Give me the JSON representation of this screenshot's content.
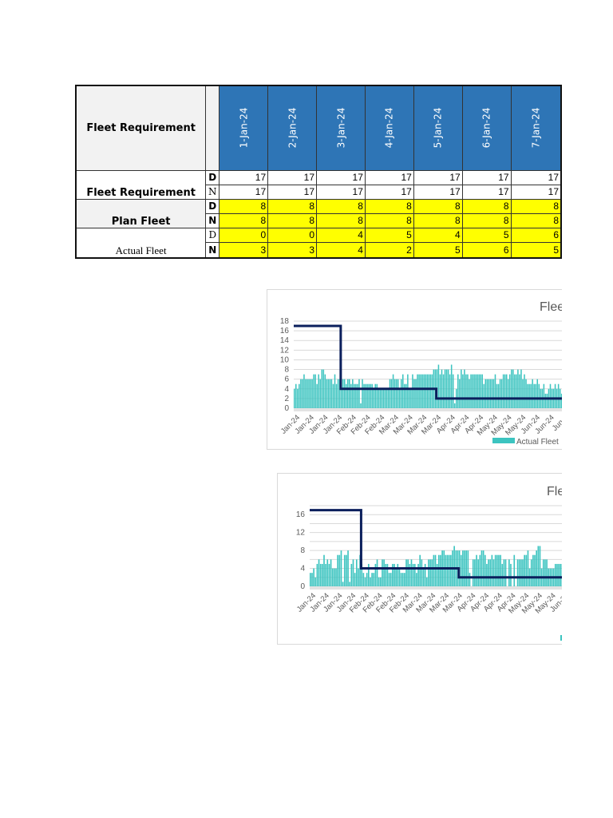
{
  "table": {
    "header_label": "Fleet Requirement",
    "dates": [
      "1-Jan-24",
      "2-Jan-24",
      "3-Jan-24",
      "4-Jan-24",
      "5-Jan-24",
      "6-Jan-24",
      "7-Jan-24"
    ],
    "rows": [
      {
        "group": "Fleet Requirement",
        "shift": "D",
        "values": [
          "17",
          "17",
          "17",
          "17",
          "17",
          "17",
          "17"
        ]
      },
      {
        "group": "",
        "shift": "N",
        "values": [
          "17",
          "17",
          "17",
          "17",
          "17",
          "17",
          "17"
        ]
      },
      {
        "group": "Plan Fleet",
        "shift": "D",
        "values": [
          "8",
          "8",
          "8",
          "8",
          "8",
          "8",
          "8"
        ]
      },
      {
        "group": "",
        "shift": "N",
        "values": [
          "8",
          "8",
          "8",
          "8",
          "8",
          "8",
          "8"
        ]
      },
      {
        "group": "Actual Fleet",
        "shift": "D",
        "values": [
          "0",
          "0",
          "4",
          "5",
          "4",
          "5",
          "6"
        ]
      },
      {
        "group": "",
        "shift": "N",
        "values": [
          "3",
          "3",
          "4",
          "2",
          "5",
          "6",
          "5"
        ]
      }
    ]
  },
  "chart_data": [
    {
      "type": "bar",
      "title": "Flee",
      "legend": [
        "Actual Fleet"
      ],
      "legend_placement": "bottom-right",
      "ylim": [
        0,
        18
      ],
      "yticks": [
        0,
        2,
        4,
        6,
        8,
        10,
        12,
        14,
        16,
        18
      ],
      "grid": true,
      "colors": {
        "bars": "#3cc4c0",
        "line": "#0b1f5c"
      },
      "xtick_labels": [
        "Jan-24",
        "Jan-24",
        "Jan-24",
        "Jan-24",
        "Feb-24",
        "Feb-24",
        "Feb-24",
        "Mar-24",
        "Mar-24",
        "Mar-24",
        "Mar-24",
        "Apr-24",
        "Apr-24",
        "Apr-24",
        "May-24",
        "May-24",
        "May-24",
        "Jun-24",
        "Jun-24",
        "Jun-2"
      ],
      "series": [
        {
          "name": "Actual Fleet",
          "type": "bar",
          "values": [
            4,
            5,
            4,
            5,
            6,
            6,
            7,
            6,
            6,
            6,
            6,
            6,
            7,
            7,
            5,
            7,
            6,
            8,
            8,
            7,
            6,
            6,
            6,
            6,
            5,
            7,
            5,
            6,
            6,
            6,
            6,
            6,
            5,
            6,
            6,
            5,
            6,
            5,
            5,
            5,
            6,
            1,
            6,
            5,
            5,
            5,
            5,
            5,
            5,
            4,
            5,
            5,
            4,
            4,
            4,
            4,
            4,
            4,
            4,
            6,
            6,
            7,
            6,
            6,
            6,
            4,
            6,
            7,
            5,
            5,
            7,
            4,
            4,
            7,
            6,
            6,
            7,
            7,
            7,
            7,
            7,
            7,
            7,
            7,
            7,
            7,
            8,
            8,
            8,
            9,
            7,
            8,
            7,
            8,
            8,
            8,
            7,
            9,
            7,
            1,
            4,
            7,
            6,
            8,
            7,
            8,
            7,
            7,
            6,
            7,
            7,
            7,
            7,
            7,
            7,
            7,
            7,
            5,
            6,
            6,
            6,
            6,
            6,
            6,
            7,
            5,
            5,
            6,
            6,
            7,
            7,
            7,
            6,
            7,
            8,
            8,
            7,
            7,
            8,
            7,
            8,
            6,
            7,
            6,
            5,
            5,
            5,
            6,
            5,
            5,
            6,
            5,
            4,
            4,
            5,
            3,
            3,
            4,
            5,
            4,
            4,
            5,
            4,
            5,
            4,
            3,
            3
          ]
        },
        {
          "type": "line",
          "steps": [
            {
              "start_index": 0,
              "value": 17
            },
            {
              "start_index": 29,
              "value": 4
            },
            {
              "start_index": 88,
              "value": 2
            }
          ]
        }
      ]
    },
    {
      "type": "bar",
      "title": "Fle",
      "legend": [
        ""
      ],
      "legend_placement": "bottom-right",
      "ylim": [
        0,
        18
      ],
      "yticks": [
        0,
        4,
        8,
        12,
        16
      ],
      "grid": true,
      "colors": {
        "bars": "#3cc4c0",
        "line": "#0b1f5c"
      },
      "xtick_labels": [
        "Jan-24",
        "Jan-24",
        "Jan-24",
        "Jan-24",
        "Feb-24",
        "Feb-24",
        "Feb-24",
        "Feb-24",
        "Mar-24",
        "Mar-24",
        "Mar-24",
        "Mar-24",
        "Apr-24",
        "Apr-24",
        "Apr-24",
        "Apr-24",
        "May-24",
        "May-24",
        "May-24",
        "Jun-24",
        "Jun"
      ],
      "series": [
        {
          "type": "bar",
          "values": [
            3,
            3,
            4,
            2,
            5,
            6,
            5,
            5,
            7,
            5,
            6,
            5,
            6,
            4,
            4,
            4,
            7,
            7,
            8,
            1,
            7,
            7,
            8,
            1,
            5,
            6,
            3,
            6,
            4,
            7,
            5,
            3,
            2,
            3,
            5,
            2,
            3,
            3,
            5,
            6,
            2,
            2,
            6,
            6,
            5,
            5,
            3,
            3,
            5,
            5,
            4,
            5,
            4,
            3,
            3,
            3,
            6,
            6,
            5,
            6,
            5,
            5,
            3,
            5,
            7,
            6,
            4,
            5,
            2,
            6,
            6,
            6,
            7,
            7,
            5,
            7,
            7,
            8,
            8,
            7,
            7,
            7,
            7,
            8,
            9,
            8,
            8,
            8,
            7,
            8,
            8,
            8,
            8,
            3,
            0,
            6,
            6,
            7,
            6,
            7,
            8,
            8,
            7,
            5,
            6,
            6,
            7,
            6,
            7,
            7,
            7,
            7,
            5,
            6,
            6,
            0,
            6,
            5,
            0,
            7,
            0,
            6,
            6,
            6,
            6,
            7,
            7,
            8,
            4,
            6,
            7,
            7,
            8,
            9,
            9,
            4,
            6,
            6,
            6,
            4,
            4,
            4,
            4,
            5,
            5,
            5,
            5,
            5,
            4,
            3
          ]
        },
        {
          "type": "line",
          "steps": [
            {
              "start_index": 0,
              "value": 17
            },
            {
              "start_index": 30,
              "value": 4
            },
            {
              "start_index": 87,
              "value": 2
            }
          ]
        }
      ]
    }
  ]
}
